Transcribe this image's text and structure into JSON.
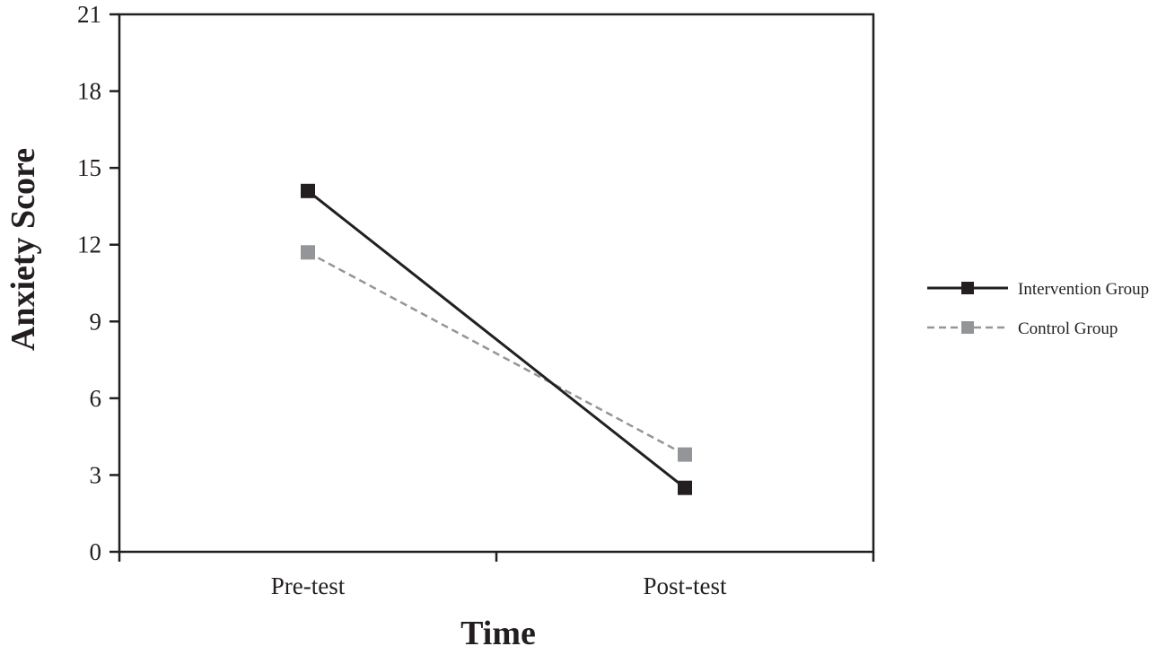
{
  "chart_data": {
    "type": "line",
    "title": "",
    "xlabel": "Time",
    "ylabel": "Anxiety Score",
    "categories": [
      "Pre-test",
      "Post-test"
    ],
    "ylim": [
      0,
      21
    ],
    "yticks": [
      0,
      3,
      6,
      9,
      12,
      15,
      18,
      21
    ],
    "grid": false,
    "legend_position": "right",
    "series": [
      {
        "name": "Intervention Group",
        "values": [
          14.1,
          2.5
        ],
        "color": "#231f20",
        "dashed": false
      },
      {
        "name": "Control Group",
        "values": [
          11.7,
          3.8
        ],
        "color": "#939598",
        "dashed": true
      }
    ]
  }
}
